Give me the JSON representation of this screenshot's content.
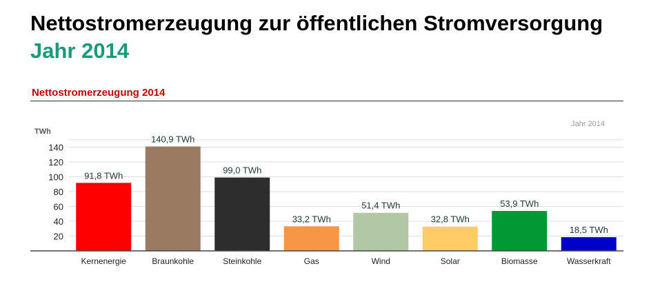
{
  "header": {
    "title": "Nettostromerzeugung zur öffentlichen Stromversorgung",
    "subtitle": "Jahr 2014"
  },
  "chart_data": {
    "type": "bar",
    "title": "Nettostromerzeugung 2014",
    "year_label": "Jahr 2014",
    "ylabel": "TWh",
    "ylim": [
      0,
      160
    ],
    "y_ticks": [
      20,
      40,
      60,
      80,
      100,
      120,
      140
    ],
    "grid": true,
    "categories": [
      "Kernenergie",
      "Braunkohle",
      "Steinkohle",
      "Gas",
      "Wind",
      "Solar",
      "Biomasse",
      "Wasserkraft"
    ],
    "values": [
      91.8,
      140.9,
      99.0,
      33.2,
      51.4,
      32.8,
      53.9,
      18.5
    ],
    "value_labels": [
      "91,8 TWh",
      "140,9 TWh",
      "99,0 TWh",
      "33,2 TWh",
      "51,4 TWh",
      "32,8 TWh",
      "53,9 TWh",
      "18,5 TWh"
    ],
    "colors": [
      "#ff0000",
      "#9a7b62",
      "#2d2d2d",
      "#f79646",
      "#b2c8a5",
      "#ffcc66",
      "#009933",
      "#0000cc"
    ]
  }
}
